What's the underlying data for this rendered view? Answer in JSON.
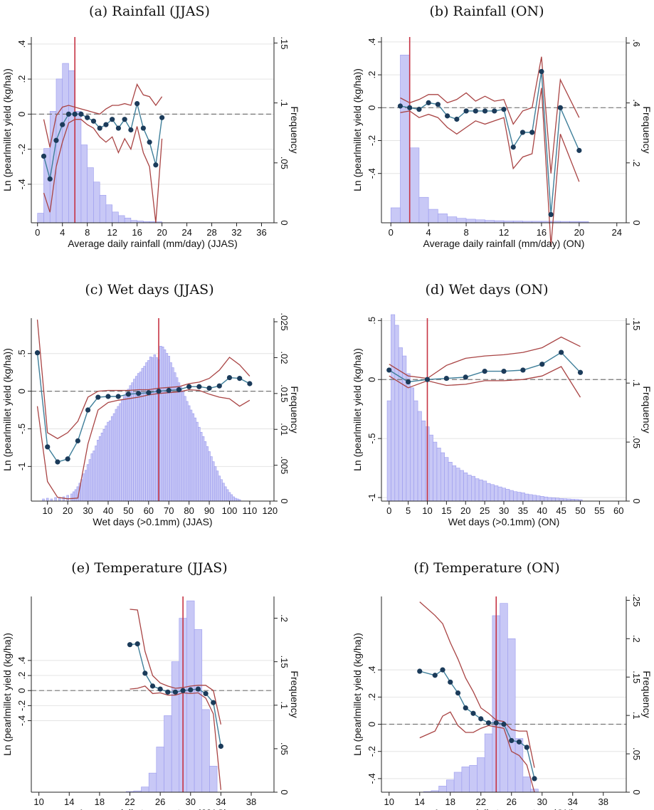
{
  "chart_data": [
    {
      "id": "a",
      "type": "line",
      "title": "(a) Rainfall (JJAS)",
      "xlabel": "Average daily rainfall (mm/day) (JJAS)",
      "ylabel": "Ln (pearlmillet yield (kg/ha))",
      "y2label": "Frequency",
      "xlim": [
        -1,
        38
      ],
      "ylim": [
        -0.62,
        0.44
      ],
      "y2lim": [
        0,
        0.155
      ],
      "xticks": [
        0,
        4,
        8,
        12,
        16,
        20,
        24,
        28,
        32,
        36
      ],
      "yticks": [
        -0.4,
        -0.2,
        0,
        0.2,
        0.4
      ],
      "yticklabels": [
        "-.4",
        "-.2",
        "0",
        ".2",
        ".4"
      ],
      "y2ticks": [
        0,
        0.05,
        0.1,
        0.15
      ],
      "y2ticklabels": [
        "0",
        ".05",
        ".1",
        ".15"
      ],
      "ref_x": 6,
      "hist": {
        "width": 1,
        "x": [
          0.5,
          1.5,
          2.5,
          3.5,
          4.5,
          5.5,
          6.5,
          7.5,
          8.5,
          9.5,
          10.5,
          11.5,
          12.5,
          13.5,
          14.5,
          15.5,
          16.5,
          17.5,
          18.5,
          19.5
        ],
        "freq": [
          0.008,
          0.062,
          0.093,
          0.12,
          0.133,
          0.127,
          0.093,
          0.065,
          0.046,
          0.034,
          0.023,
          0.015,
          0.009,
          0.006,
          0.004,
          0.002,
          0.0015,
          0.001,
          0.001,
          0.0008
        ]
      },
      "x": [
        1,
        2,
        3,
        4,
        5,
        6,
        7,
        8,
        9,
        10,
        11,
        12,
        13,
        14,
        15,
        16,
        17,
        18,
        19,
        20
      ],
      "estimate": [
        -0.24,
        -0.37,
        -0.15,
        -0.06,
        0,
        0,
        0,
        -0.02,
        -0.04,
        -0.08,
        -0.06,
        -0.03,
        -0.08,
        -0.03,
        -0.09,
        0.06,
        -0.08,
        -0.16,
        -0.29,
        -0.02
      ],
      "upper": [
        -0.03,
        -0.19,
        -0.01,
        0.04,
        0.05,
        0.04,
        0.03,
        0.02,
        0.01,
        0.0,
        0.03,
        0.05,
        0.05,
        0.06,
        0.05,
        0.17,
        0.11,
        0.1,
        0.05,
        0.1
      ],
      "lower": [
        -0.45,
        -0.56,
        -0.3,
        -0.16,
        -0.05,
        -0.03,
        -0.03,
        -0.06,
        -0.08,
        -0.13,
        -0.16,
        -0.13,
        -0.22,
        -0.14,
        -0.2,
        -0.07,
        -0.22,
        -0.3,
        -0.62,
        -0.14
      ]
    },
    {
      "id": "b",
      "type": "line",
      "title": "(b) Rainfall (ON)",
      "xlabel": "Average daily rainfall (mm/day) (ON)",
      "ylabel": "Ln (pearlmillet yield (kg/ha))",
      "y2label": "Frequency",
      "xlim": [
        -1,
        25
      ],
      "ylim": [
        -0.7,
        0.43
      ],
      "y2lim": [
        0,
        0.62
      ],
      "xticks": [
        0,
        4,
        8,
        12,
        16,
        20,
        24
      ],
      "yticks": [
        -0.4,
        -0.2,
        0,
        0.2,
        0.4
      ],
      "yticklabels": [
        "-.4",
        "-.2",
        "0",
        ".2",
        ".4"
      ],
      "y2ticks": [
        0,
        0.2,
        0.4,
        0.6
      ],
      "y2ticklabels": [
        "0",
        ".2",
        ".4",
        ".6"
      ],
      "ref_x": 2,
      "hist": {
        "width": 1,
        "x": [
          0.5,
          1.5,
          2.5,
          3.5,
          4.5,
          5.5,
          6.5,
          7.5,
          8.5,
          9.5,
          10.5,
          11.5,
          12.5,
          13.5,
          14.5,
          15.5,
          16.5,
          17.5,
          18.5,
          19.5,
          20.5
        ],
        "freq": [
          0.05,
          0.56,
          0.25,
          0.085,
          0.045,
          0.03,
          0.02,
          0.015,
          0.012,
          0.01,
          0.008,
          0.007,
          0.006,
          0.006,
          0.005,
          0.005,
          0.005,
          0.005,
          0.0045,
          0.0045,
          0.004
        ]
      },
      "x": [
        1,
        2,
        3,
        4,
        5,
        6,
        7,
        8,
        9,
        10,
        11,
        12,
        13,
        14,
        15,
        16,
        17,
        18,
        20
      ],
      "estimate": [
        0.01,
        0,
        -0.01,
        0.03,
        0.02,
        -0.05,
        -0.07,
        -0.02,
        -0.02,
        -0.02,
        -0.02,
        -0.01,
        -0.24,
        -0.15,
        -0.15,
        0.22,
        -0.65,
        0,
        -0.26
      ],
      "upper": [
        0.06,
        0.03,
        0.05,
        0.08,
        0.08,
        0.03,
        0.05,
        0.09,
        0.04,
        0.07,
        0.04,
        0.05,
        -0.1,
        -0.02,
        0.0,
        0.31,
        -0.4,
        0.17,
        -0.06
      ],
      "lower": [
        -0.03,
        -0.02,
        -0.06,
        -0.04,
        -0.06,
        -0.12,
        -0.16,
        -0.12,
        -0.08,
        -0.1,
        -0.08,
        -0.06,
        -0.37,
        -0.3,
        -0.28,
        0.12,
        -0.84,
        -0.16,
        -0.45
      ]
    },
    {
      "id": "c",
      "type": "line",
      "title": "(c) Wet days (JJAS)",
      "xlabel": "Wet days (>0.1mm) (JJAS)",
      "ylabel": "Ln (pearlmillet yield (kg/ha))",
      "y2label": "Frequency",
      "xlim": [
        2,
        122
      ],
      "ylim": [
        -1.46,
        0.97
      ],
      "y2lim": [
        0,
        0.0255
      ],
      "xticks": [
        10,
        20,
        30,
        40,
        50,
        60,
        70,
        80,
        90,
        100,
        110,
        120
      ],
      "yticks": [
        -1,
        -0.5,
        0,
        0.5
      ],
      "yticklabels": [
        "-1",
        "-.5",
        "0",
        ".5"
      ],
      "y2ticks": [
        0,
        0.005,
        0.01,
        0.015,
        0.02,
        0.025
      ],
      "y2ticklabels": [
        "0",
        ".005",
        ".01",
        ".015",
        ".02",
        ".025"
      ],
      "ref_x": 65,
      "hist": {
        "width": 1,
        "x": [
          8,
          10,
          12,
          14,
          16,
          18,
          20,
          22,
          23,
          24,
          25,
          26,
          27,
          28,
          29,
          30,
          31,
          32,
          33,
          34,
          35,
          36,
          37,
          38,
          39,
          40,
          41,
          42,
          43,
          44,
          45,
          46,
          47,
          48,
          49,
          50,
          51,
          52,
          53,
          54,
          55,
          56,
          57,
          58,
          59,
          60,
          61,
          62,
          63,
          64,
          65,
          66,
          67,
          68,
          69,
          70,
          71,
          72,
          73,
          74,
          75,
          76,
          77,
          78,
          79,
          80,
          81,
          82,
          83,
          84,
          85,
          86,
          87,
          88,
          89,
          90,
          91,
          92,
          93,
          94,
          95,
          96,
          97,
          98,
          99,
          100,
          101,
          102,
          103,
          104,
          105
        ],
        "freq": [
          0.0003,
          0.0004,
          0.0003,
          0.0005,
          0.0004,
          0.0006,
          0.0008,
          0.001,
          0.0013,
          0.0016,
          0.002,
          0.0025,
          0.003,
          0.0038,
          0.0043,
          0.0051,
          0.0058,
          0.0066,
          0.007,
          0.0077,
          0.0085,
          0.009,
          0.0095,
          0.01,
          0.0105,
          0.011,
          0.0112,
          0.0118,
          0.0122,
          0.0128,
          0.0132,
          0.0136,
          0.0141,
          0.0146,
          0.0151,
          0.0156,
          0.0161,
          0.0165,
          0.017,
          0.0174,
          0.0178,
          0.018,
          0.0185,
          0.0188,
          0.0193,
          0.0196,
          0.0201,
          0.02,
          0.0204,
          0.02,
          0.0197,
          0.0216,
          0.0215,
          0.0211,
          0.0206,
          0.0202,
          0.0193,
          0.0186,
          0.0179,
          0.0172,
          0.0165,
          0.0159,
          0.0152,
          0.0146,
          0.0139,
          0.0133,
          0.0127,
          0.0122,
          0.0116,
          0.011,
          0.0103,
          0.0096,
          0.009,
          0.0083,
          0.0076,
          0.0069,
          0.0062,
          0.0055,
          0.0048,
          0.0042,
          0.0035,
          0.003,
          0.0025,
          0.002,
          0.0016,
          0.0012,
          0.0009,
          0.0006,
          0.0004,
          0.0003,
          0.0002
        ]
      },
      "x": [
        5,
        10,
        15,
        20,
        25,
        30,
        35,
        40,
        45,
        50,
        55,
        60,
        65,
        70,
        75,
        80,
        85,
        90,
        95,
        100,
        105,
        110
      ],
      "estimate": [
        0.51,
        -0.74,
        -0.94,
        -0.9,
        -0.66,
        -0.25,
        -0.08,
        -0.07,
        -0.07,
        -0.04,
        -0.03,
        -0.02,
        0,
        0.01,
        0.02,
        0.06,
        0.06,
        0.04,
        0.07,
        0.18,
        0.17,
        0.1
      ],
      "upper": [
        0.95,
        -0.55,
        -0.63,
        -0.55,
        -0.4,
        -0.08,
        0.0,
        0.01,
        0.01,
        0.01,
        0.02,
        0.02,
        0.04,
        0.05,
        0.06,
        0.1,
        0.12,
        0.17,
        0.28,
        0.45,
        0.35,
        0.2
      ],
      "lower": [
        -0.2,
        -1.2,
        -1.41,
        -1.43,
        -1.42,
        -0.7,
        -0.25,
        -0.15,
        -0.12,
        -0.1,
        -0.08,
        -0.05,
        -0.03,
        -0.02,
        -0.01,
        0.02,
        0.01,
        -0.04,
        -0.08,
        -0.1,
        -0.2,
        -0.12
      ]
    },
    {
      "id": "d",
      "type": "line",
      "title": "(d) Wet days (ON)",
      "xlabel": "Wet days (>0.1mm) (ON)",
      "ylabel": "Ln (pearlmillet yield (kg/ha))",
      "y2label": "Frequency",
      "xlim": [
        -2,
        62
      ],
      "ylim": [
        -1.03,
        0.52
      ],
      "y2lim": [
        0,
        0.155
      ],
      "xticks": [
        0,
        5,
        10,
        15,
        20,
        25,
        30,
        35,
        40,
        45,
        50,
        55,
        60
      ],
      "yticks": [
        -1,
        -0.5,
        0,
        0.5
      ],
      "yticklabels": [
        "-1",
        "-.5",
        "0",
        ".5"
      ],
      "y2ticks": [
        0,
        0.05,
        0.1,
        0.15
      ],
      "y2ticklabels": [
        "0",
        ".05",
        ".1",
        ".15"
      ],
      "ref_x": 10,
      "hist": {
        "width": 1,
        "x": [
          0,
          1,
          2,
          3,
          4,
          5,
          6,
          7,
          8,
          9,
          10,
          11,
          12,
          13,
          14,
          15,
          16,
          17,
          18,
          19,
          20,
          21,
          22,
          23,
          24,
          25,
          26,
          27,
          28,
          29,
          30,
          31,
          32,
          33,
          34,
          35,
          36,
          37,
          38,
          39,
          40,
          41,
          42,
          43,
          44,
          45,
          46,
          47,
          48,
          49,
          50
        ],
        "freq": [
          0.085,
          0.158,
          0.149,
          0.13,
          0.123,
          0.108,
          0.096,
          0.085,
          0.076,
          0.068,
          0.063,
          0.056,
          0.05,
          0.045,
          0.041,
          0.037,
          0.033,
          0.03,
          0.028,
          0.026,
          0.024,
          0.022,
          0.021,
          0.019,
          0.018,
          0.017,
          0.015,
          0.014,
          0.013,
          0.012,
          0.011,
          0.01,
          0.009,
          0.008,
          0.0075,
          0.007,
          0.006,
          0.0055,
          0.005,
          0.0045,
          0.004,
          0.0035,
          0.003,
          0.0028,
          0.0025,
          0.0022,
          0.002,
          0.0018,
          0.0016,
          0.0014,
          0.0012
        ]
      },
      "x": [
        0,
        5,
        10,
        15,
        20,
        25,
        30,
        35,
        40,
        45,
        50
      ],
      "estimate": [
        0.08,
        -0.02,
        0,
        0.01,
        0.02,
        0.07,
        0.07,
        0.08,
        0.13,
        0.23,
        0.06
      ],
      "upper": [
        0.13,
        0.03,
        0.01,
        0.12,
        0.18,
        0.2,
        0.21,
        0.23,
        0.27,
        0.36,
        0.28
      ],
      "lower": [
        0.03,
        -0.07,
        -0.01,
        -0.05,
        -0.04,
        -0.01,
        -0.01,
        0.0,
        0.03,
        0.11,
        -0.15
      ]
    },
    {
      "id": "e",
      "type": "line",
      "title": "(e) Temperature (JJAS)",
      "xlabel": "Average daily temperature (JJAS)",
      "ylabel": "Ln (pearlmillet yield (kg/ha))",
      "y2label": "Frequency",
      "xlim": [
        9,
        41
      ],
      "ylim": [
        -1.35,
        1.25
      ],
      "y2lim": [
        0,
        0.225
      ],
      "xticks": [
        10,
        14,
        18,
        22,
        26,
        30,
        34,
        38
      ],
      "yticks": [
        -0.4,
        -0.2,
        0,
        0.2,
        0.4
      ],
      "yticklabels": [
        "-.4",
        "-.2",
        "0",
        ".2",
        ".4"
      ],
      "y2ticks": [
        0,
        0.05,
        0.1,
        0.15,
        0.2
      ],
      "y2ticklabels": [
        "0",
        ".05",
        ".1",
        ".15",
        ".2"
      ],
      "ref_x": 29,
      "hist": {
        "width": 1,
        "x": [
          22,
          23,
          24,
          25,
          26,
          27,
          28,
          29,
          30,
          31,
          32,
          33
        ],
        "freq": [
          0.0008,
          0.0015,
          0.006,
          0.022,
          0.052,
          0.088,
          0.15,
          0.2,
          0.22,
          0.187,
          0.095,
          0.03
        ]
      },
      "x": [
        22,
        23,
        24,
        25,
        26,
        27,
        28,
        29,
        30,
        31,
        32,
        33,
        34
      ],
      "estimate": [
        0.61,
        0.62,
        0.23,
        0.06,
        0.02,
        -0.02,
        -0.02,
        0,
        0.01,
        0.02,
        -0.04,
        -0.16,
        -0.74
      ],
      "upper": [
        1.08,
        1.07,
        0.52,
        0.2,
        0.1,
        0.06,
        0.03,
        0.04,
        0.06,
        0.07,
        0.07,
        0.0,
        -0.45
      ],
      "lower": [
        0.02,
        0.03,
        0.06,
        -0.04,
        -0.03,
        -0.06,
        -0.06,
        -0.03,
        -0.04,
        -0.03,
        -0.1,
        -0.31,
        -1.32
      ]
    },
    {
      "id": "f",
      "type": "line",
      "title": "(f) Temperature (ON)",
      "xlabel": "Average daily temperature (ON)",
      "ylabel": "Ln (pearlmillet yield (kg/ha))",
      "y2label": "Frequency",
      "xlim": [
        9,
        41
      ],
      "ylim": [
        -0.5,
        0.94
      ],
      "y2lim": [
        0,
        0.255
      ],
      "xticks": [
        10,
        14,
        18,
        22,
        26,
        30,
        34,
        38
      ],
      "yticks": [
        -0.4,
        -0.2,
        0,
        0.2,
        0.4
      ],
      "yticklabels": [
        "-.4",
        "-.2",
        "0",
        ".2",
        ".4"
      ],
      "y2ticks": [
        0,
        0.05,
        0.1,
        0.15,
        0.2,
        0.25
      ],
      "y2ticklabels": [
        "0",
        ".05",
        ".1",
        ".15",
        ".2",
        ".25"
      ],
      "ref_x": 24,
      "hist": {
        "width": 1,
        "x": [
          15,
          16,
          17,
          18,
          19,
          20,
          21,
          22,
          23,
          24,
          25,
          26,
          27,
          28,
          29
        ],
        "freq": [
          0.0008,
          0.002,
          0.008,
          0.016,
          0.026,
          0.033,
          0.035,
          0.045,
          0.076,
          0.23,
          0.246,
          0.2,
          0.07,
          0.02,
          0.004
        ]
      },
      "x": [
        14,
        16,
        17,
        18,
        19,
        20,
        21,
        22,
        23,
        24,
        25,
        26,
        27,
        28,
        29
      ],
      "estimate": [
        0.39,
        0.36,
        0.4,
        0.31,
        0.23,
        0.12,
        0.08,
        0.04,
        0.01,
        0.01,
        0,
        -0.12,
        -0.13,
        -0.17,
        -0.4
      ],
      "upper": [
        0.9,
        0.8,
        0.74,
        0.6,
        0.48,
        0.34,
        0.24,
        0.12,
        0.08,
        0.03,
        0.02,
        -0.04,
        -0.05,
        -0.05,
        -0.32
      ],
      "lower": [
        -0.1,
        -0.05,
        0.06,
        0.09,
        -0.01,
        -0.06,
        -0.06,
        -0.03,
        -0.01,
        -0.02,
        -0.03,
        -0.2,
        -0.23,
        -0.3,
        -0.5
      ]
    }
  ]
}
